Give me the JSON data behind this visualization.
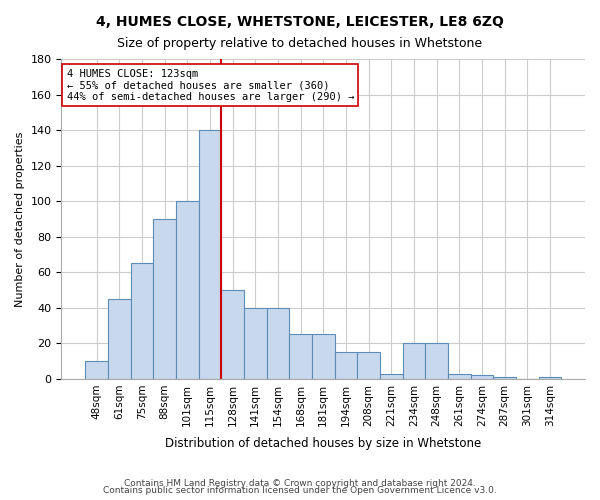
{
  "title1": "4, HUMES CLOSE, WHETSTONE, LEICESTER, LE8 6ZQ",
  "title2": "Size of property relative to detached houses in Whetstone",
  "xlabel": "Distribution of detached houses by size in Whetstone",
  "ylabel": "Number of detached properties",
  "categories": [
    "48sqm",
    "61sqm",
    "75sqm",
    "88sqm",
    "101sqm",
    "115sqm",
    "128sqm",
    "141sqm",
    "154sqm",
    "168sqm",
    "181sqm",
    "194sqm",
    "208sqm",
    "221sqm",
    "234sqm",
    "248sqm",
    "261sqm",
    "274sqm",
    "287sqm",
    "301sqm",
    "314sqm"
  ],
  "values": [
    10,
    45,
    65,
    90,
    100,
    140,
    50,
    40,
    40,
    25,
    25,
    15,
    15,
    3,
    20,
    20,
    3,
    2,
    1,
    0,
    1
  ],
  "bar_color": "#c9d9ed",
  "bar_edge_color": "#5b8db8",
  "vline_x": 5.5,
  "vline_color": "#cc0000",
  "annotation_lines": [
    "4 HUMES CLOSE: 123sqm",
    "← 55% of detached houses are smaller (360)",
    "44% of semi-detached houses are larger (290) →"
  ],
  "annotation_box_color": "#ffffff",
  "annotation_box_edge": "#cc0000",
  "ylim": [
    0,
    180
  ],
  "yticks": [
    0,
    20,
    40,
    60,
    80,
    100,
    120,
    140,
    160,
    180
  ],
  "footnote1": "Contains HM Land Registry data © Crown copyright and database right 2024.",
  "footnote2": "Contains public sector information licensed under the Open Government Licence v3.0.",
  "bg_color": "#ffffff",
  "grid_color": "#cccccc"
}
